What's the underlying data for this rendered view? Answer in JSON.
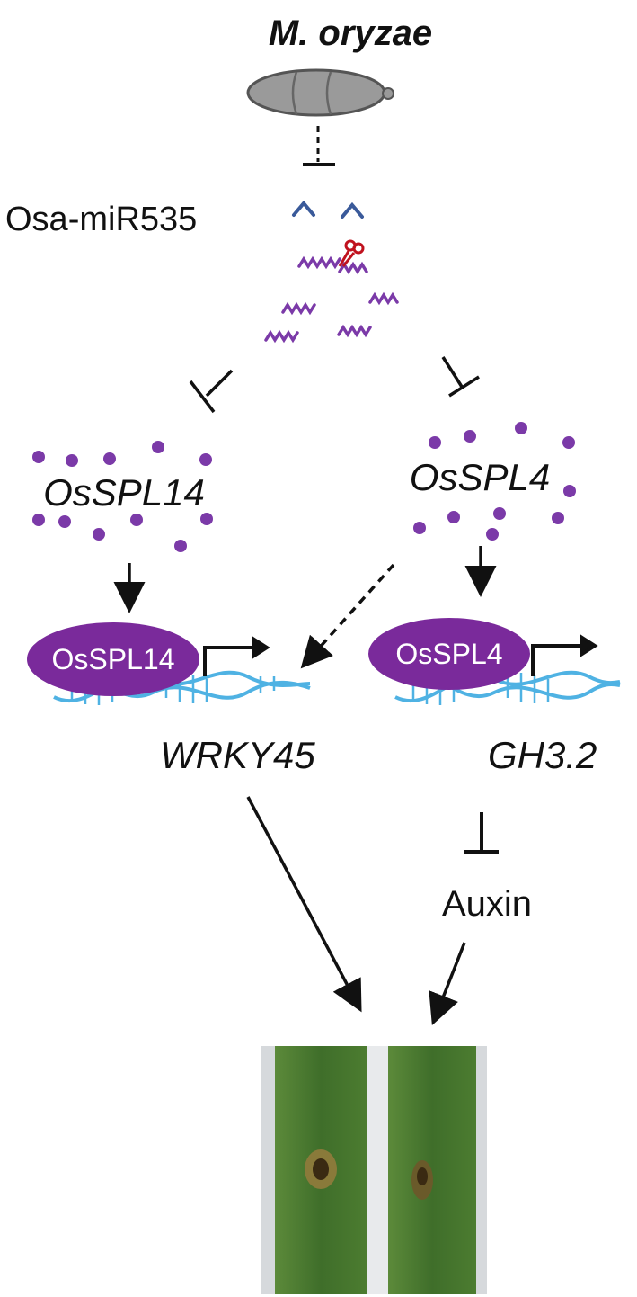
{
  "pathogen": {
    "name": "M. oryzae",
    "icon": "fungal-spore-icon",
    "color": "#9b9b9b"
  },
  "mirna": {
    "name": "Osa-miR535",
    "color": "#3a5a9a",
    "icon": "mirna-strand-icon",
    "cleavage_icon": "scissors-icon"
  },
  "transcripts": {
    "color": "#7b3aa8"
  },
  "genes": {
    "left": {
      "name": "OsSPL14",
      "protein": "OsSPL14",
      "target": "WRKY45"
    },
    "right": {
      "name": "OsSPL4",
      "protein": "OsSPL4",
      "target": "GH3.2"
    }
  },
  "hormone": {
    "name": "Auxin"
  },
  "colors": {
    "protein": "#7a2a9b",
    "dna": "#4fb2e3",
    "dot": "#7b3aa8",
    "leaf": "#3f6e2a"
  },
  "outcome": {
    "icon": "rice-leaf-lesion-photo"
  }
}
